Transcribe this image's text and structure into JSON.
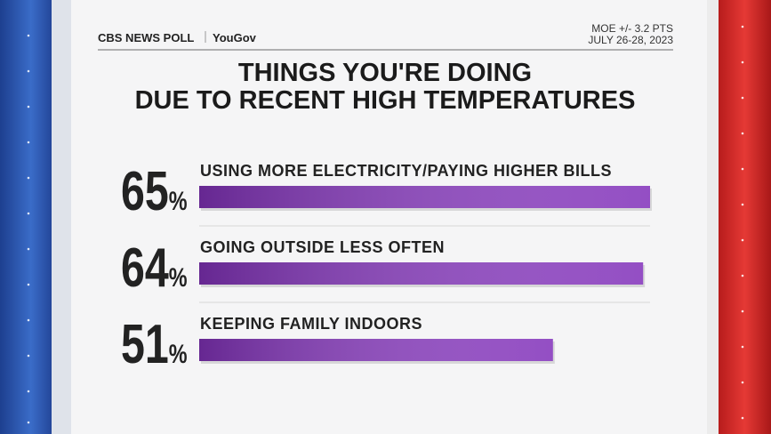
{
  "header": {
    "logo": "CBS NEWS POLL",
    "partner": "YouGov",
    "moe": "MOE +/- 3.2 PTS",
    "dates": "JULY 26-28, 2023"
  },
  "chart_data": {
    "type": "bar",
    "orientation": "horizontal",
    "title": [
      "THINGS YOU'RE DOING",
      "DUE TO RECENT HIGH TEMPERATURES"
    ],
    "categories": [
      "USING MORE ELECTRICITY/PAYING HIGHER BILLS",
      "GOING OUTSIDE LESS OFTEN",
      "KEEPING FAMILY INDOORS"
    ],
    "values": [
      65,
      64,
      51
    ],
    "value_labels": [
      "65%",
      "64%",
      "51%"
    ],
    "color": "#8a3fbf"
  }
}
